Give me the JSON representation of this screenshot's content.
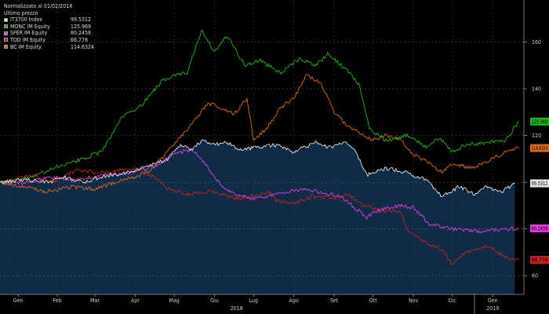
{
  "chart_data": {
    "type": "line",
    "title": "Normalizzato al 01/02/2018",
    "subtitle": "Ultimo prezzo",
    "x_start": "2018-01-01",
    "x_end": "2019-02-08",
    "xlim": [
      "2018-01-01",
      "2019-02-08"
    ],
    "ylim": [
      52,
      178
    ],
    "y_ticks": [
      60,
      80,
      100,
      120,
      140,
      160
    ],
    "y_tick_labels": [
      "60",
      "80",
      "100",
      "120",
      "140",
      "160"
    ],
    "x_ticks": [
      {
        "label": "Gen",
        "date": "2018-01-15"
      },
      {
        "label": "Feb",
        "date": "2018-02-14"
      },
      {
        "label": "Mar",
        "date": "2018-03-15"
      },
      {
        "label": "Apr",
        "date": "2018-04-15"
      },
      {
        "label": "Mag",
        "date": "2018-05-15"
      },
      {
        "label": "Giu",
        "date": "2018-06-15"
      },
      {
        "label": "Lug",
        "date": "2018-07-15"
      },
      {
        "label": "Ago",
        "date": "2018-08-15"
      },
      {
        "label": "Set",
        "date": "2018-09-15"
      },
      {
        "label": "Ott",
        "date": "2018-10-15"
      },
      {
        "label": "Nov",
        "date": "2018-11-15"
      },
      {
        "label": "Dic",
        "date": "2018-12-15"
      },
      {
        "label": "Gen",
        "date": "2019-01-15"
      }
    ],
    "year_labels": [
      {
        "label": "2018",
        "date": "2018-07-02"
      },
      {
        "label": "2019",
        "date": "2019-01-15"
      }
    ],
    "year_divider_date": "2019-01-01",
    "grid": true,
    "legend": "top-left",
    "series": [
      {
        "name": "IT3700 Index",
        "last_value": "99.5312",
        "last_value_num": 99.5312,
        "color": "#e8e8e8",
        "fill": "#0e2c48",
        "points": [
          [
            "2018-01-01",
            100
          ],
          [
            "2018-01-20",
            101
          ],
          [
            "2018-02-08",
            100
          ],
          [
            "2018-02-20",
            102
          ],
          [
            "2018-03-05",
            100
          ],
          [
            "2018-03-25",
            103
          ],
          [
            "2018-04-10",
            104
          ],
          [
            "2018-04-25",
            107
          ],
          [
            "2018-05-10",
            110
          ],
          [
            "2018-05-20",
            116
          ],
          [
            "2018-05-28",
            114
          ],
          [
            "2018-06-06",
            118
          ],
          [
            "2018-06-15",
            116
          ],
          [
            "2018-06-25",
            117
          ],
          [
            "2018-07-05",
            114
          ],
          [
            "2018-07-20",
            115
          ],
          [
            "2018-08-01",
            116
          ],
          [
            "2018-08-15",
            113
          ],
          [
            "2018-09-01",
            117
          ],
          [
            "2018-09-12",
            115
          ],
          [
            "2018-09-25",
            117
          ],
          [
            "2018-10-01",
            114
          ],
          [
            "2018-10-10",
            103
          ],
          [
            "2018-10-25",
            106
          ],
          [
            "2018-11-10",
            104
          ],
          [
            "2018-11-25",
            101
          ],
          [
            "2018-12-07",
            94
          ],
          [
            "2018-12-20",
            98
          ],
          [
            "2019-01-01",
            95
          ],
          [
            "2019-01-10",
            98
          ],
          [
            "2019-01-22",
            96
          ],
          [
            "2019-02-01",
            99.5312
          ]
        ]
      },
      {
        "name": "MONC IM Equity",
        "last_value": "125.969",
        "last_value_num": 125.969,
        "color": "#1fb81f",
        "points": [
          [
            "2018-01-01",
            100
          ],
          [
            "2018-01-25",
            102
          ],
          [
            "2018-02-10",
            106
          ],
          [
            "2018-02-28",
            109
          ],
          [
            "2018-03-20",
            113
          ],
          [
            "2018-04-05",
            128
          ],
          [
            "2018-04-20",
            133
          ],
          [
            "2018-05-05",
            143
          ],
          [
            "2018-05-15",
            146
          ],
          [
            "2018-05-25",
            147
          ],
          [
            "2018-06-05",
            165
          ],
          [
            "2018-06-15",
            156
          ],
          [
            "2018-06-25",
            163
          ],
          [
            "2018-07-08",
            150
          ],
          [
            "2018-07-20",
            152
          ],
          [
            "2018-08-05",
            147
          ],
          [
            "2018-08-20",
            153
          ],
          [
            "2018-09-01",
            150
          ],
          [
            "2018-09-10",
            155
          ],
          [
            "2018-09-25",
            148
          ],
          [
            "2018-10-05",
            141
          ],
          [
            "2018-10-12",
            123
          ],
          [
            "2018-10-25",
            118
          ],
          [
            "2018-11-10",
            120
          ],
          [
            "2018-11-25",
            115
          ],
          [
            "2018-12-05",
            119
          ],
          [
            "2018-12-15",
            113
          ],
          [
            "2018-12-25",
            116
          ],
          [
            "2019-01-10",
            117
          ],
          [
            "2019-01-25",
            118
          ],
          [
            "2019-02-04",
            125.969
          ]
        ]
      },
      {
        "name": "SFER IM Equity",
        "last_value": "80.2458",
        "last_value_num": 80.2458,
        "color": "#e040e0",
        "points": [
          [
            "2018-01-01",
            100
          ],
          [
            "2018-01-20",
            100
          ],
          [
            "2018-02-10",
            102
          ],
          [
            "2018-03-01",
            101
          ],
          [
            "2018-03-20",
            103
          ],
          [
            "2018-04-10",
            104
          ],
          [
            "2018-05-01",
            107
          ],
          [
            "2018-05-15",
            112
          ],
          [
            "2018-05-28",
            114
          ],
          [
            "2018-06-05",
            110
          ],
          [
            "2018-06-15",
            102
          ],
          [
            "2018-06-25",
            96
          ],
          [
            "2018-07-15",
            93
          ],
          [
            "2018-08-01",
            95
          ],
          [
            "2018-08-20",
            97
          ],
          [
            "2018-09-01",
            96
          ],
          [
            "2018-09-20",
            94
          ],
          [
            "2018-10-01",
            89
          ],
          [
            "2018-10-10",
            85
          ],
          [
            "2018-10-20",
            88
          ],
          [
            "2018-11-05",
            90
          ],
          [
            "2018-11-15",
            89
          ],
          [
            "2018-11-28",
            82
          ],
          [
            "2018-12-15",
            80
          ],
          [
            "2019-01-05",
            79
          ],
          [
            "2019-01-25",
            80
          ],
          [
            "2019-02-04",
            80.2458
          ]
        ]
      },
      {
        "name": "TOD IM Equity",
        "last_value": "66.778",
        "last_value_num": 66.778,
        "color": "#cc1f1f",
        "points": [
          [
            "2018-01-01",
            100
          ],
          [
            "2018-01-25",
            103
          ],
          [
            "2018-02-10",
            100
          ],
          [
            "2018-03-01",
            105
          ],
          [
            "2018-03-20",
            104
          ],
          [
            "2018-04-15",
            106
          ],
          [
            "2018-05-01",
            102
          ],
          [
            "2018-05-10",
            97
          ],
          [
            "2018-05-25",
            95
          ],
          [
            "2018-06-15",
            96
          ],
          [
            "2018-06-30",
            93
          ],
          [
            "2018-07-15",
            94
          ],
          [
            "2018-07-28",
            96
          ],
          [
            "2018-08-01",
            92
          ],
          [
            "2018-08-15",
            91
          ],
          [
            "2018-08-30",
            94
          ],
          [
            "2018-09-15",
            93
          ],
          [
            "2018-09-25",
            95
          ],
          [
            "2018-10-05",
            91
          ],
          [
            "2018-10-20",
            88
          ],
          [
            "2018-11-05",
            87
          ],
          [
            "2018-11-12",
            78
          ],
          [
            "2018-11-25",
            74
          ],
          [
            "2018-12-07",
            71
          ],
          [
            "2018-12-15",
            65
          ],
          [
            "2018-12-25",
            70
          ],
          [
            "2019-01-10",
            73
          ],
          [
            "2019-01-25",
            68
          ],
          [
            "2019-02-04",
            66.778
          ]
        ]
      },
      {
        "name": "BC IM Equity",
        "last_value": "114.6324",
        "last_value_num": 114.6324,
        "color": "#e06a1a",
        "points": [
          [
            "2018-01-01",
            100
          ],
          [
            "2018-01-20",
            98
          ],
          [
            "2018-02-05",
            96
          ],
          [
            "2018-02-25",
            98
          ],
          [
            "2018-03-15",
            97
          ],
          [
            "2018-04-05",
            101
          ],
          [
            "2018-04-25",
            104
          ],
          [
            "2018-05-15",
            116
          ],
          [
            "2018-05-30",
            126
          ],
          [
            "2018-06-10",
            134
          ],
          [
            "2018-06-20",
            132
          ],
          [
            "2018-06-30",
            129
          ],
          [
            "2018-07-10",
            136
          ],
          [
            "2018-07-15",
            118
          ],
          [
            "2018-07-25",
            123
          ],
          [
            "2018-08-05",
            132
          ],
          [
            "2018-08-15",
            136
          ],
          [
            "2018-08-25",
            146
          ],
          [
            "2018-09-05",
            142
          ],
          [
            "2018-09-15",
            130
          ],
          [
            "2018-09-25",
            124
          ],
          [
            "2018-10-05",
            121
          ],
          [
            "2018-10-15",
            118
          ],
          [
            "2018-10-25",
            120
          ],
          [
            "2018-11-05",
            118
          ],
          [
            "2018-11-15",
            112
          ],
          [
            "2018-11-28",
            108
          ],
          [
            "2018-12-07",
            104
          ],
          [
            "2018-12-15",
            108
          ],
          [
            "2018-12-30",
            106
          ],
          [
            "2019-01-15",
            110
          ],
          [
            "2019-01-28",
            114
          ],
          [
            "2019-02-04",
            114.6324
          ]
        ]
      }
    ]
  }
}
